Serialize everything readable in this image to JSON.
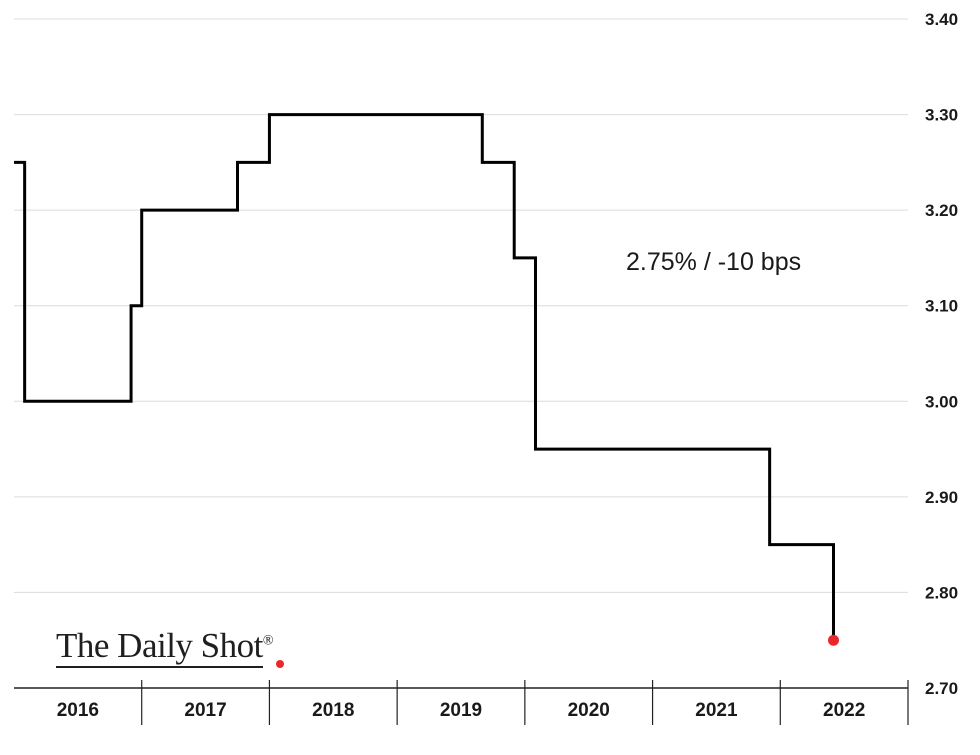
{
  "chart_data": {
    "type": "line",
    "step": true,
    "y_axis": {
      "position": "right",
      "ylim": [
        2.7,
        3.4
      ],
      "ticks": [
        "3.40",
        "3.30",
        "3.20",
        "3.10",
        "3.00",
        "2.90",
        "2.80",
        "2.70"
      ]
    },
    "x_axis": {
      "categories": [
        "2016",
        "2017",
        "2018",
        "2019",
        "2020",
        "2021",
        "2022"
      ]
    },
    "grid": true,
    "series": [
      {
        "color": "#000000",
        "points": [
          {
            "x": "2016-01",
            "y": 3.25
          },
          {
            "x": "2016-02",
            "y": 3.0
          },
          {
            "x": "2016-12",
            "y": 3.1
          },
          {
            "x": "2017-01",
            "y": 3.2
          },
          {
            "x": "2017-10",
            "y": 3.25
          },
          {
            "x": "2018-01",
            "y": 3.3
          },
          {
            "x": "2019-09",
            "y": 3.25
          },
          {
            "x": "2019-12",
            "y": 3.15
          },
          {
            "x": "2020-02",
            "y": 2.95
          },
          {
            "x": "2021-12",
            "y": 2.85
          },
          {
            "x": "2022-06",
            "y": 2.75
          }
        ],
        "end_marker_color": "#e8262b"
      }
    ],
    "annotations": [
      {
        "text": "2.75%  /  -10 bps"
      }
    ],
    "source_logo": "The Daily Shot",
    "source_logo_mark": "®"
  }
}
